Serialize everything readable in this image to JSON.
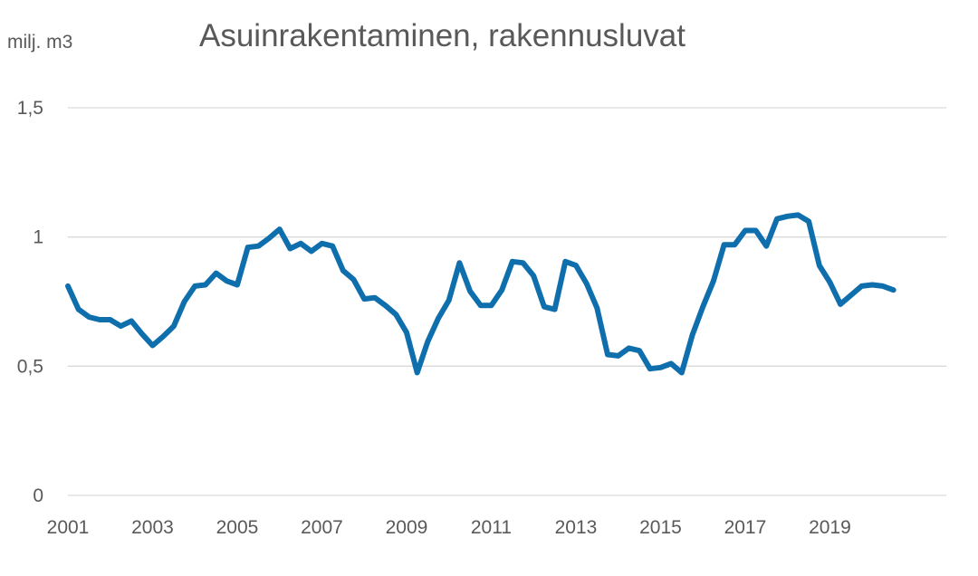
{
  "title": "Asuinrakentaminen, rakennusluvat",
  "y_unit_label": "milj. m3",
  "chart_data": {
    "type": "line",
    "title": "Asuinrakentaminen, rakennusluvat",
    "ylabel": "milj. m3",
    "xlabel": "",
    "xlim": [
      2001,
      2021.75
    ],
    "ylim": [
      0,
      1.5
    ],
    "y_ticks": [
      0,
      0.5,
      1,
      1.5
    ],
    "y_tick_labels": [
      "0",
      "0,5",
      "1",
      "1,5"
    ],
    "x_ticks": [
      2001,
      2003,
      2005,
      2007,
      2009,
      2011,
      2013,
      2015,
      2017,
      2019
    ],
    "x_tick_labels": [
      "2001",
      "2003",
      "2005",
      "2007",
      "2009",
      "2011",
      "2013",
      "2015",
      "2017",
      "2019"
    ],
    "grid": "horizontal",
    "line_color": "#0F6FAD",
    "gridline_color": "#D9D9D9",
    "series": [
      {
        "x": [
          2001.0,
          2001.25,
          2001.5,
          2001.75,
          2002.0,
          2002.25,
          2002.5,
          2002.75,
          2003.0,
          2003.25,
          2003.5,
          2003.75,
          2004.0,
          2004.25,
          2004.5,
          2004.75,
          2005.0,
          2005.25,
          2005.5,
          2005.75,
          2006.0,
          2006.25,
          2006.5,
          2006.75,
          2007.0,
          2007.25,
          2007.5,
          2007.75,
          2008.0,
          2008.25,
          2008.5,
          2008.75,
          2009.0,
          2009.25,
          2009.5,
          2009.75,
          2010.0,
          2010.25,
          2010.5,
          2010.75,
          2011.0,
          2011.25,
          2011.5,
          2011.75,
          2012.0,
          2012.25,
          2012.5,
          2012.75,
          2013.0,
          2013.25,
          2013.5,
          2013.75,
          2014.0,
          2014.25,
          2014.5,
          2014.75,
          2015.0,
          2015.25,
          2015.5,
          2015.75,
          2016.0,
          2016.25,
          2016.5,
          2016.75,
          2017.0,
          2017.25,
          2017.5,
          2017.75,
          2018.0,
          2018.25,
          2018.5,
          2018.75,
          2019.0,
          2019.25,
          2019.5,
          2019.75,
          2020.0,
          2020.25,
          2020.5
        ],
        "values": [
          0.81,
          0.72,
          0.69,
          0.68,
          0.68,
          0.655,
          0.675,
          0.625,
          0.58,
          0.615,
          0.655,
          0.75,
          0.81,
          0.815,
          0.86,
          0.83,
          0.815,
          0.96,
          0.965,
          0.995,
          1.03,
          0.955,
          0.975,
          0.945,
          0.975,
          0.965,
          0.87,
          0.835,
          0.76,
          0.765,
          0.735,
          0.7,
          0.63,
          0.475,
          0.595,
          0.685,
          0.755,
          0.9,
          0.79,
          0.735,
          0.735,
          0.795,
          0.905,
          0.9,
          0.85,
          0.73,
          0.72,
          0.905,
          0.89,
          0.82,
          0.725,
          0.545,
          0.54,
          0.57,
          0.56,
          0.49,
          0.495,
          0.51,
          0.475,
          0.62,
          0.73,
          0.83,
          0.97,
          0.97,
          1.025,
          1.025,
          0.965,
          1.07,
          1.08,
          1.085,
          1.06,
          0.89,
          0.825,
          0.74,
          0.775,
          0.81,
          0.815,
          0.81,
          0.795
        ]
      }
    ]
  }
}
